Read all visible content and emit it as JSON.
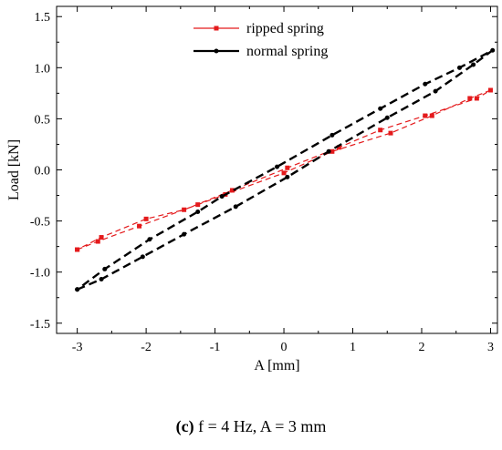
{
  "chart_data": {
    "type": "line",
    "title": "",
    "xlabel": "A [mm]",
    "ylabel": "Load [kN]",
    "xlim": [
      -3.3,
      3.1
    ],
    "ylim": [
      -1.6,
      1.6
    ],
    "xticks": [
      -3,
      -2,
      -1,
      0,
      1,
      2,
      3
    ],
    "yticks": [
      -1.5,
      -1.0,
      -0.5,
      0.0,
      0.5,
      1.0,
      1.5
    ],
    "xtick_labels": [
      "-3",
      "-2",
      "-1",
      "0",
      "1",
      "2",
      "3"
    ],
    "ytick_labels": [
      "-1.5",
      "-1.0",
      "-0.5",
      "0.0",
      "0.5",
      "1.0",
      "1.5"
    ],
    "grid": false,
    "legend_position": "top-center",
    "series": [
      {
        "name": "ripped spring",
        "color": "#e41a1c",
        "marker": "square",
        "line_style": "dashed",
        "x": [
          -3.0,
          -2.7,
          -2.1,
          -1.25,
          -0.85,
          0.0,
          0.7,
          1.55,
          2.15,
          2.7,
          3.0,
          2.8,
          2.05,
          1.4,
          0.8,
          0.05,
          -0.75,
          -1.45,
          -2.0,
          -2.65,
          -3.0
        ],
        "y": [
          -0.78,
          -0.7,
          -0.55,
          -0.34,
          -0.24,
          -0.03,
          0.18,
          0.36,
          0.53,
          0.7,
          0.78,
          0.7,
          0.53,
          0.39,
          0.22,
          0.02,
          -0.2,
          -0.39,
          -0.48,
          -0.66,
          -0.78
        ]
      },
      {
        "name": "normal spring",
        "color": "#000000",
        "marker": "circle",
        "line_style": "dashed",
        "x": [
          -3.0,
          -2.65,
          -2.05,
          -1.45,
          -0.7,
          0.05,
          0.65,
          1.5,
          2.2,
          2.75,
          3.03,
          2.55,
          2.05,
          1.4,
          0.7,
          -0.1,
          -0.9,
          -1.25,
          -1.95,
          -2.6,
          -3.0
        ],
        "y": [
          -1.17,
          -1.07,
          -0.85,
          -0.63,
          -0.36,
          -0.07,
          0.18,
          0.51,
          0.77,
          1.03,
          1.17,
          1.0,
          0.84,
          0.6,
          0.34,
          0.03,
          -0.26,
          -0.41,
          -0.68,
          -0.97,
          -1.17
        ]
      }
    ]
  },
  "caption": {
    "label": "(c)",
    "text": " f = 4 Hz, A = 3 mm"
  }
}
